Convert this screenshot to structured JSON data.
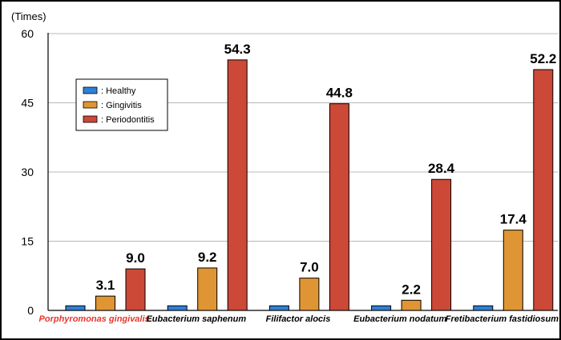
{
  "chart_data": {
    "type": "bar",
    "title": "",
    "xlabel": "",
    "ylabel": "(Times)",
    "ylim": [
      0,
      60
    ],
    "yticks": [
      0,
      15,
      30,
      45,
      60
    ],
    "grid": true,
    "legend_position": "upper-left",
    "categories": [
      "Porphyromonas gingivalis",
      "Eubacterium saphenum",
      "Filifactor alocis",
      "Eubacterium nodatum",
      "Fretibacterium fastidiosum"
    ],
    "highlight_category_color": "#e8362c",
    "series": [
      {
        "name": ": Healthy",
        "color": "#2f80d6",
        "values": [
          1,
          1,
          1,
          1,
          1
        ],
        "labels": [
          "",
          "",
          "",
          "",
          ""
        ]
      },
      {
        "name": ": Gingivitis",
        "color": "#e09534",
        "values": [
          3.1,
          9.2,
          7.0,
          2.2,
          17.4
        ],
        "labels": [
          "3.1",
          "9.2",
          "7.0",
          "2.2",
          "17.4"
        ]
      },
      {
        "name": ": Periodontitis",
        "color": "#cc4837",
        "values": [
          9.0,
          54.3,
          44.8,
          28.4,
          52.2
        ],
        "labels": [
          "9.0",
          "54.3",
          "44.8",
          "28.4",
          "52.2"
        ]
      }
    ]
  }
}
